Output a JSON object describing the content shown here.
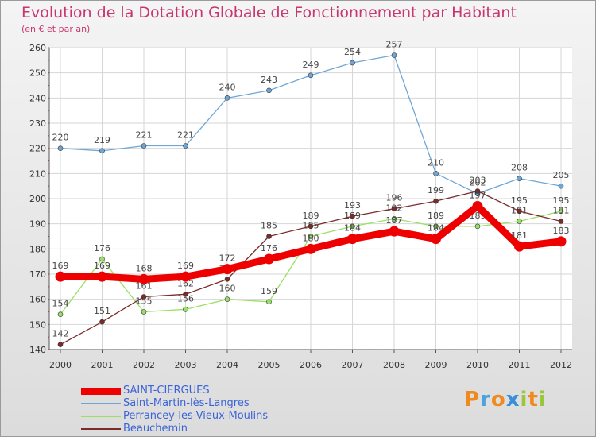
{
  "title": "Evolution de la Dotation Globale de Fonctionnement par Habitant",
  "subtitle": "(en € et par an)",
  "logo": {
    "letters": [
      "P",
      "r",
      "o",
      "x",
      "i",
      "t",
      "i"
    ],
    "colors": [
      "#f08a1e",
      "#4aa3df",
      "#f08a1e",
      "#3a8fd8",
      "#9bc53d",
      "#f08a1e",
      "#9bc53d"
    ]
  },
  "chart_data": {
    "type": "line",
    "title": "Evolution de la Dotation Globale de Fonctionnement par Habitant",
    "ylabel": "(en € et par an)",
    "x": [
      "2000",
      "2001",
      "2002",
      "2003",
      "2004",
      "2005",
      "2006",
      "2007",
      "2008",
      "2009",
      "2010",
      "2011",
      "2012"
    ],
    "ylim": [
      140,
      260
    ],
    "yticks": [
      140,
      150,
      160,
      170,
      180,
      190,
      200,
      210,
      220,
      230,
      240,
      250,
      260
    ],
    "grid": true,
    "legend_position": "bottom-left",
    "series": [
      {
        "name": "SAINT-CIERGUES",
        "color": "#ee0000",
        "emphasis": true,
        "values": [
          169,
          169,
          168,
          169,
          172,
          176,
          180,
          184,
          187,
          184,
          197,
          181,
          183
        ]
      },
      {
        "name": "Saint-Martin-lès-Langres",
        "color": "#6fa6d6",
        "values": [
          220,
          219,
          221,
          221,
          240,
          243,
          249,
          254,
          257,
          210,
          202,
          208,
          205
        ]
      },
      {
        "name": "Perrancey-les-Vieux-Moulins",
        "color": "#99e064",
        "values": [
          154,
          176,
          155,
          156,
          160,
          159,
          185,
          189,
          192,
          189,
          189,
          191,
          195
        ]
      },
      {
        "name": "Beauchemin",
        "color": "#7a2b2b",
        "values": [
          142,
          151,
          161,
          162,
          168,
          185,
          189,
          193,
          196,
          199,
          203,
          195,
          191
        ]
      }
    ]
  }
}
